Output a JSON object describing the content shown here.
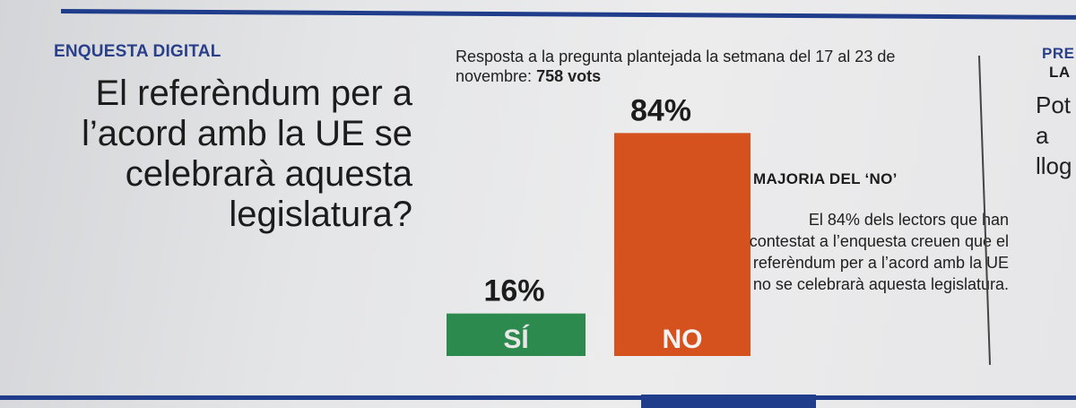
{
  "section_label": "ENQUESTA DIGITAL",
  "question": "El referèndum per a l’acord amb la UE se celebrarà aquesta legislatura?",
  "poll_intro": {
    "text": "Resposta a la pregunta plantejada la setmana del 17 al 23 de novembre:",
    "votes": "758 vots"
  },
  "chart_data": {
    "type": "bar",
    "title": "",
    "categories": [
      "SÍ",
      "NO"
    ],
    "values": [
      16,
      84
    ],
    "value_labels": [
      "16%",
      "84%"
    ],
    "colors": [
      "#2d8a4e",
      "#d5511d"
    ],
    "ylim": [
      0,
      100
    ],
    "xlabel": "",
    "ylabel": "",
    "grid": false
  },
  "result": {
    "heading": "MAJORIA DEL ‘NO’",
    "body": "El 84% dels lectors que han contestat a l’enquesta creuen que el referèndum per a l’acord amb la UE no se celebrarà aquesta legislatura."
  },
  "next_column": {
    "kicker_1": "PRE",
    "kicker_2": "LA",
    "text": "Pot a llog"
  }
}
